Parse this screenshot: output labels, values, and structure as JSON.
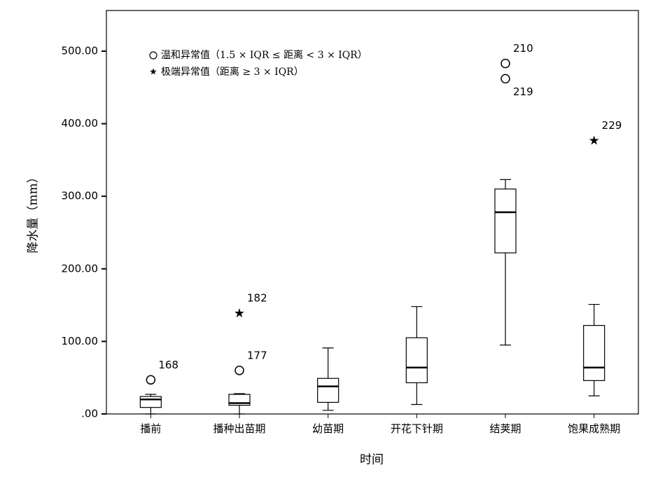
{
  "chart_data": {
    "type": "boxplot",
    "x_label": "时间",
    "y_label": "降水量（mm）",
    "categories": [
      "播前",
      "播种出苗期",
      "幼苗期",
      "开花下针期",
      "结荚期",
      "饱果成熟期"
    ],
    "boxes": [
      {
        "min": 0,
        "q1": 9,
        "median": 20,
        "q3": 24,
        "max": 27,
        "outliers": [
          {
            "value": 47,
            "label": "168",
            "kind": "mild"
          }
        ]
      },
      {
        "min": 0,
        "q1": 12,
        "median": 15,
        "q3": 27,
        "max": 28,
        "outliers": [
          {
            "value": 60,
            "label": "177",
            "kind": "mild"
          },
          {
            "value": 139,
            "label": "182",
            "kind": "extreme"
          }
        ]
      },
      {
        "min": 5,
        "q1": 16,
        "median": 38,
        "q3": 49,
        "max": 91,
        "outliers": []
      },
      {
        "min": 13,
        "q1": 43,
        "median": 64,
        "q3": 105,
        "max": 148,
        "outliers": []
      },
      {
        "min": 95,
        "q1": 222,
        "median": 278,
        "q3": 310,
        "max": 323,
        "outliers": [
          {
            "value": 483,
            "label": "210",
            "kind": "mild"
          },
          {
            "value": 462,
            "label": "219",
            "kind": "mild"
          }
        ]
      },
      {
        "min": 25,
        "q1": 46,
        "median": 64,
        "q3": 122,
        "max": 151,
        "outliers": [
          {
            "value": 377,
            "label": "229",
            "kind": "extreme"
          }
        ]
      }
    ],
    "ylim": [
      0,
      556
    ],
    "yticks": [
      {
        "value": 0,
        "label": ".00"
      },
      {
        "value": 100,
        "label": "100.00"
      },
      {
        "value": 200,
        "label": "200.00"
      },
      {
        "value": 300,
        "label": "300.00"
      },
      {
        "value": 400,
        "label": "400.00"
      },
      {
        "value": 500,
        "label": "500.00"
      }
    ],
    "legend": [
      {
        "kind": "mild",
        "label": "温和异常值（1.5 × IQR ≤ 距离 < 3 × IQR）"
      },
      {
        "kind": "extreme",
        "label": "极端异常值（距离 ≥ 3 × IQR）"
      }
    ],
    "color": "#000000"
  }
}
